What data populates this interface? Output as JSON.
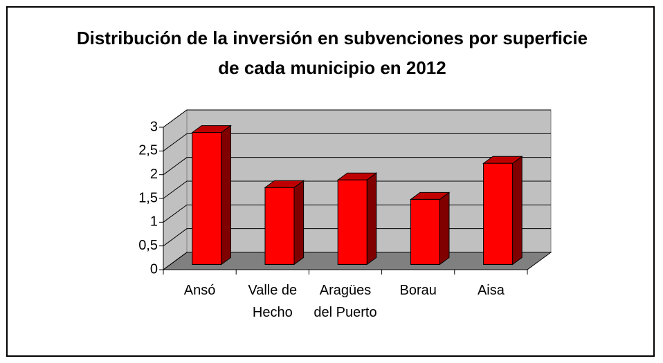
{
  "chart_data": {
    "type": "bar3d",
    "title": "Distribución de la inversión en subvenciones por superficie de cada municipio en 2012",
    "categories": [
      "Ansó",
      "Valle de Hecho",
      "Aragües del Puerto",
      "Borau",
      "Aisa"
    ],
    "values": [
      2.78,
      1.62,
      1.78,
      1.37,
      2.13
    ],
    "color": "#ff0000",
    "ylim": [
      0,
      3
    ],
    "yticks": [
      0,
      {
        "value": 0.5,
        "label": "0,5"
      },
      1,
      {
        "value": 1.5,
        "label": "1,5"
      },
      2,
      {
        "value": 2.5,
        "label": "2,5"
      },
      3
    ],
    "grid": true
  }
}
